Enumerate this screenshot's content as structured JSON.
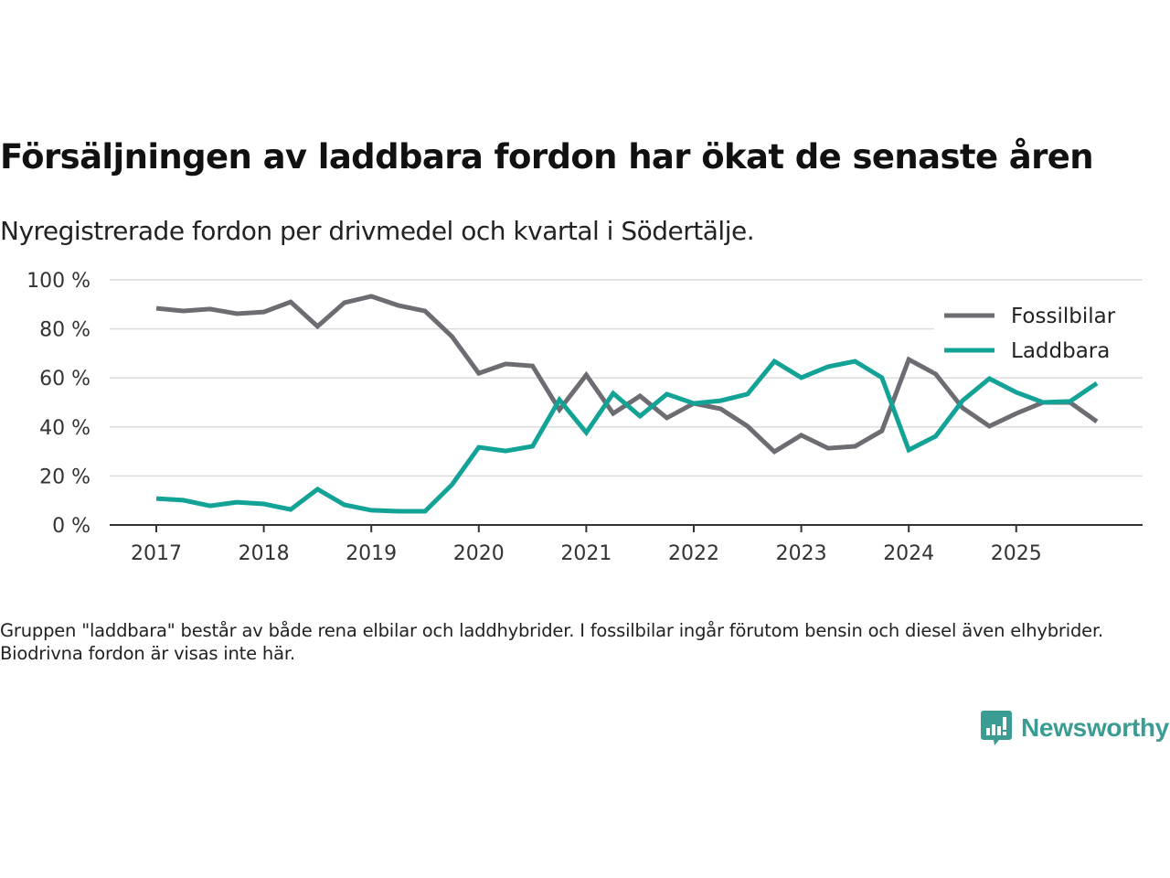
{
  "header": {
    "title": "Försäljningen av laddbara fordon har ökat de senaste åren",
    "subtitle": "Nyregistrerade fordon per drivmedel och kvartal i Södertälje."
  },
  "footnote": "Gruppen \"laddbara\" består av både rena elbilar och laddhybrider. I fossilbilar ingår förutom bensin och diesel även elhybrider. Biodrivna fordon är visas inte här.",
  "brand": {
    "name": "Newsworthy",
    "icon": "bar-chart-speech-bubble-icon",
    "color": "#3a9c92"
  },
  "chart_data": {
    "type": "line",
    "title": "Försäljningen av laddbara fordon har ökat de senaste åren",
    "subtitle": "Nyregistrerade fordon per drivmedel och kvartal i Södertälje.",
    "xlabel": "",
    "ylabel": "",
    "x": [
      "2017-Q1",
      "2017-Q2",
      "2017-Q3",
      "2017-Q4",
      "2018-Q1",
      "2018-Q2",
      "2018-Q3",
      "2018-Q4",
      "2019-Q1",
      "2019-Q2",
      "2019-Q3",
      "2019-Q4",
      "2020-Q1",
      "2020-Q2",
      "2020-Q3",
      "2020-Q4",
      "2021-Q1",
      "2021-Q2",
      "2021-Q3",
      "2021-Q4",
      "2022-Q1",
      "2022-Q2",
      "2022-Q3",
      "2022-Q4",
      "2023-Q1",
      "2023-Q2",
      "2023-Q3",
      "2023-Q4",
      "2024-Q1",
      "2024-Q2",
      "2024-Q3",
      "2024-Q4",
      "2025-Q1",
      "2025-Q2",
      "2025-Q3",
      "2025-Q4"
    ],
    "x_range": [
      2016.58,
      2026.25
    ],
    "x_ticks": [
      2017,
      2018,
      2019,
      2020,
      2021,
      2022,
      2023,
      2024,
      2025
    ],
    "x_tick_labels": [
      "2017",
      "2018",
      "2019",
      "2020",
      "2021",
      "2022",
      "2023",
      "2024",
      "2025"
    ],
    "ylim": [
      0,
      100
    ],
    "y_ticks": [
      0,
      20,
      40,
      60,
      80,
      100
    ],
    "y_tick_labels": [
      "0 %",
      "20 %",
      "40 %",
      "60 %",
      "80 %",
      "100 %"
    ],
    "grid": "horizontal",
    "legend_position": "top-right",
    "series": [
      {
        "name": "Fossilbilar",
        "color": "#6d6c72",
        "values": [
          88.4,
          87.3,
          88.1,
          86.2,
          86.9,
          91.0,
          81.0,
          90.7,
          93.3,
          89.6,
          87.3,
          76.9,
          61.9,
          65.7,
          64.9,
          47.0,
          61.2,
          45.5,
          52.6,
          43.7,
          49.6,
          47.4,
          40.3,
          29.9,
          36.6,
          31.3,
          32.1,
          38.4,
          67.5,
          61.6,
          47.8,
          40.3,
          45.5,
          50.0,
          50.0,
          42.2
        ]
      },
      {
        "name": "Laddbara",
        "color": "#12a396",
        "values": [
          10.8,
          10.1,
          7.8,
          9.3,
          8.6,
          6.3,
          14.6,
          8.2,
          6.0,
          5.6,
          5.6,
          16.4,
          31.7,
          30.2,
          32.1,
          51.1,
          37.7,
          53.7,
          44.4,
          53.4,
          49.6,
          50.7,
          53.4,
          66.8,
          60.1,
          64.6,
          66.8,
          60.1,
          30.6,
          36.2,
          50.7,
          59.7,
          54.1,
          50.0,
          50.4,
          57.8
        ]
      }
    ]
  }
}
